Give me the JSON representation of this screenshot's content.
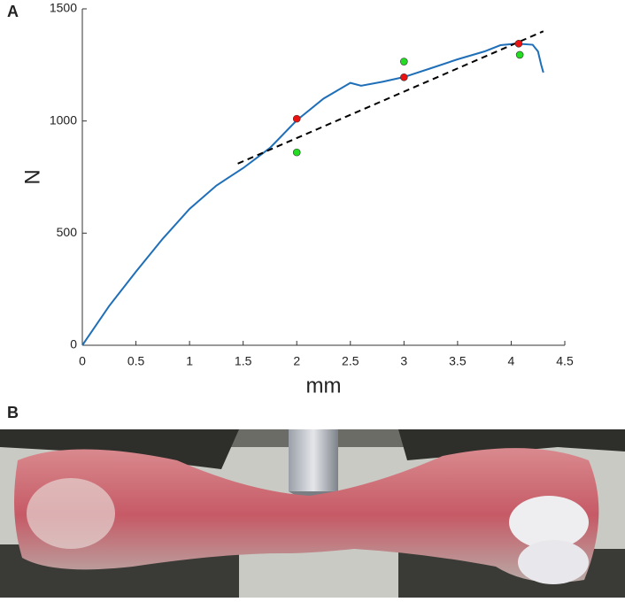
{
  "chart_data": {
    "type": "line",
    "panel_label": "A",
    "xlabel": "mm",
    "ylabel": "N",
    "xlim": [
      0,
      4.5
    ],
    "ylim": [
      0,
      1500
    ],
    "xticks": [
      0,
      0.5,
      1,
      1.5,
      2,
      2.5,
      3,
      3.5,
      4,
      4.5
    ],
    "yticks": [
      0,
      500,
      1000,
      1500
    ],
    "grid": false,
    "series": [
      {
        "style": "solid",
        "color": "#1f6fb8",
        "x": [
          0,
          0.25,
          0.5,
          0.75,
          1.0,
          1.25,
          1.5,
          1.75,
          2.0,
          2.25,
          2.5,
          2.6,
          2.8,
          3.0,
          3.25,
          3.5,
          3.75,
          3.9,
          4.05,
          4.2,
          4.25,
          4.28,
          4.3
        ],
        "values": [
          0,
          175,
          328,
          475,
          608,
          712,
          790,
          880,
          1003,
          1100,
          1170,
          1157,
          1175,
          1196,
          1235,
          1275,
          1310,
          1338,
          1345,
          1340,
          1310,
          1250,
          1216
        ]
      },
      {
        "style": "dashed",
        "color": "#000000",
        "x": [
          1.45,
          4.3
        ],
        "values": [
          810,
          1400
        ]
      },
      {
        "style": "markers",
        "color": "#22dd22",
        "x": [
          2,
          3,
          4.08
        ],
        "values": [
          860,
          1265,
          1295
        ]
      },
      {
        "style": "markers",
        "color": "#ee1111",
        "x": [
          2,
          3,
          4.07
        ],
        "values": [
          1010,
          1195,
          1345
        ]
      }
    ]
  },
  "photo": {
    "panel_label": "B"
  }
}
